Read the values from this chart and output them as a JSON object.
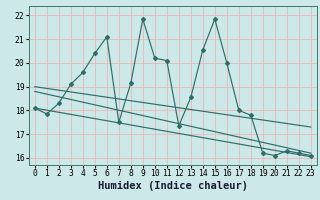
{
  "xlabel": "Humidex (Indice chaleur)",
  "xlim": [
    -0.5,
    23.5
  ],
  "ylim": [
    15.7,
    22.4
  ],
  "yticks": [
    16,
    17,
    18,
    19,
    20,
    21,
    22
  ],
  "xticks": [
    0,
    1,
    2,
    3,
    4,
    5,
    6,
    7,
    8,
    9,
    10,
    11,
    12,
    13,
    14,
    15,
    16,
    17,
    18,
    19,
    20,
    21,
    22,
    23
  ],
  "bg_color": "#cde8e8",
  "grid_color": "#e8b8b8",
  "line_color": "#2e6e68",
  "series": [
    {
      "x": [
        0,
        1,
        2,
        3,
        4,
        5,
        6,
        7,
        8,
        9,
        10,
        11,
        12,
        13,
        14,
        15,
        16,
        17,
        18,
        19,
        20,
        21,
        22,
        23
      ],
      "y": [
        18.1,
        17.85,
        18.3,
        19.1,
        19.6,
        20.4,
        21.1,
        17.5,
        19.15,
        21.85,
        20.2,
        20.1,
        17.35,
        18.55,
        20.55,
        21.85,
        20.0,
        18.0,
        17.8,
        16.2,
        16.1,
        16.3,
        16.2,
        16.1
      ]
    },
    {
      "x": [
        0,
        23
      ],
      "y": [
        19.0,
        17.3
      ]
    },
    {
      "x": [
        0,
        23
      ],
      "y": [
        18.8,
        16.2
      ]
    },
    {
      "x": [
        0,
        23
      ],
      "y": [
        18.1,
        16.05
      ]
    }
  ],
  "tick_fontsize": 5.8,
  "label_fontsize": 7.5,
  "marker_size": 2.0,
  "line_width": 0.85
}
